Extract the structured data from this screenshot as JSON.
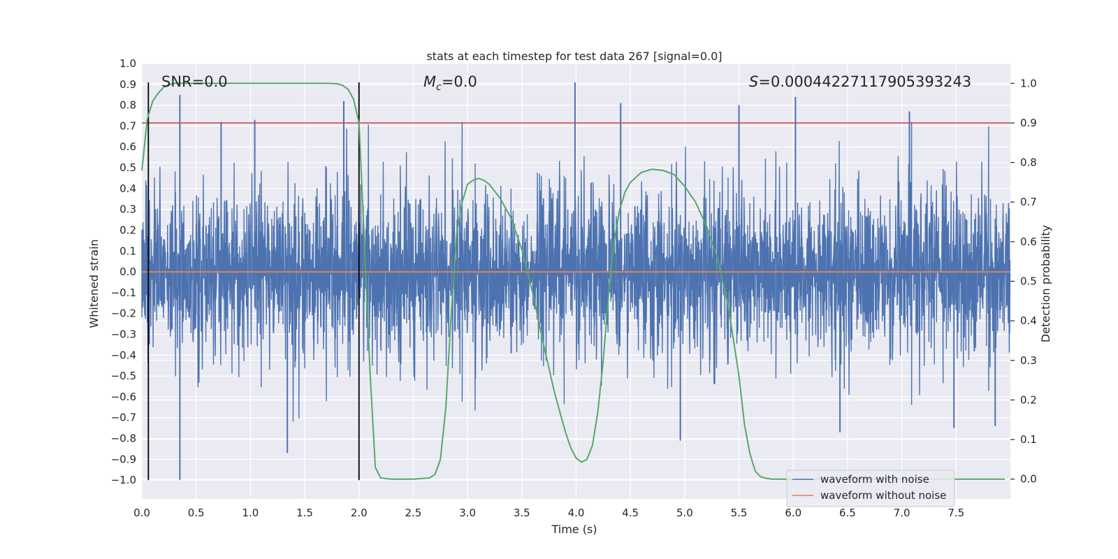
{
  "chart_data": {
    "type": "line",
    "title": "stats at each timestep for test data 267 [signal=0.0]",
    "xlabel": "Time (s)",
    "ylabel": "Whitened strain",
    "ylabel_right": "Detection probability",
    "xlim": [
      0.0,
      8.0
    ],
    "ylim": [
      -1.09,
      1.0
    ],
    "ylim_right": [
      -0.05,
      1.05
    ],
    "xticks": [
      0.0,
      0.5,
      1.0,
      1.5,
      2.0,
      2.5,
      3.0,
      3.5,
      4.0,
      4.5,
      5.0,
      5.5,
      6.0,
      6.5,
      7.0,
      7.5
    ],
    "xtick_labels": [
      "0.0",
      "0.5",
      "1.0",
      "1.5",
      "2.0",
      "2.5",
      "3.0",
      "3.5",
      "4.0",
      "4.5",
      "5.0",
      "5.5",
      "6.0",
      "6.5",
      "7.0",
      "7.5"
    ],
    "yticks": [
      1.0,
      0.9,
      0.8,
      0.7,
      0.6,
      0.5,
      0.4,
      0.3,
      0.2,
      0.1,
      0.0,
      -0.1,
      -0.2,
      -0.3,
      -0.4,
      -0.5,
      -0.6,
      -0.7,
      -0.8,
      -0.9,
      -1.0
    ],
    "ytick_labels": [
      "1.0",
      "0.9",
      "0.8",
      "0.7",
      "0.6",
      "0.5",
      "0.4",
      "0.3",
      "0.2",
      "0.1",
      "0.0",
      "−0.1",
      "−0.2",
      "−0.3",
      "−0.4",
      "−0.5",
      "−0.6",
      "−0.7",
      "−0.8",
      "−0.9",
      "−1.0"
    ],
    "yticks_right": [
      1.0,
      0.9,
      0.8,
      0.7,
      0.6,
      0.5,
      0.4,
      0.3,
      0.2,
      0.1,
      0.0
    ],
    "ytick_labels_right": [
      "1.0",
      "0.9",
      "0.8",
      "0.7",
      "0.6",
      "0.5",
      "0.4",
      "0.3",
      "0.2",
      "0.1",
      "0.0"
    ],
    "annotations": {
      "snr_prefix": "SNR=0.0",
      "mc_symbol": "M",
      "mc_sub": "c",
      "mc_value": "=0.0",
      "s_symbol": "S",
      "s_value": "=0.00044227117905393243"
    },
    "vertical_lines_x": [
      0.06,
      2.0
    ],
    "threshold_right": 0.9,
    "colors": {
      "noise": "#4c72b0",
      "clean": "#dd8452",
      "prob": "#55a868",
      "threshold": "#c44e52",
      "vline": "#000000",
      "bg": "#eaeaf2",
      "grid": "#ffffff"
    },
    "series": [
      {
        "name": "waveform with noise",
        "type": "noise",
        "envelope": {
          "typical_abs_max": 0.55,
          "peak_max": 0.91,
          "peak_min": -1.0
        },
        "spikes": [
          {
            "x": 0.35,
            "y": 0.85
          },
          {
            "x": 0.35,
            "y": -1.0
          },
          {
            "x": 0.73,
            "y": 0.72
          },
          {
            "x": 1.04,
            "y": 0.73
          },
          {
            "x": 1.34,
            "y": -0.87
          },
          {
            "x": 1.86,
            "y": 0.82
          },
          {
            "x": 3.99,
            "y": 0.91
          },
          {
            "x": 4.41,
            "y": 0.81
          },
          {
            "x": 4.96,
            "y": -0.81
          },
          {
            "x": 5.5,
            "y": 0.8
          },
          {
            "x": 6.02,
            "y": 0.84
          },
          {
            "x": 6.43,
            "y": -0.77
          },
          {
            "x": 7.07,
            "y": 0.77
          },
          {
            "x": 7.86,
            "y": -0.74
          },
          {
            "x": 7.48,
            "y": -0.75
          }
        ]
      },
      {
        "name": "waveform without noise",
        "type": "clean",
        "x": [
          0.0,
          8.0
        ],
        "y": [
          0.0,
          0.0
        ]
      },
      {
        "name": "Detection probability",
        "type": "prob",
        "axis": "right",
        "x": [
          0.0,
          0.05,
          0.1,
          0.15,
          0.2,
          0.25,
          0.3,
          0.4,
          0.6,
          1.0,
          1.5,
          1.7,
          1.8,
          1.85,
          1.9,
          1.95,
          2.0,
          2.05,
          2.1,
          2.15,
          2.2,
          2.3,
          2.5,
          2.65,
          2.7,
          2.75,
          2.8,
          2.85,
          2.9,
          2.95,
          3.0,
          3.05,
          3.1,
          3.15,
          3.2,
          3.3,
          3.4,
          3.5,
          3.6,
          3.7,
          3.8,
          3.9,
          3.95,
          4.0,
          4.05,
          4.1,
          4.15,
          4.2,
          4.25,
          4.3,
          4.35,
          4.4,
          4.45,
          4.5,
          4.6,
          4.7,
          4.8,
          4.9,
          5.0,
          5.1,
          5.2,
          5.3,
          5.4,
          5.5,
          5.55,
          5.6,
          5.65,
          5.7,
          5.75,
          5.8,
          5.9,
          6.0,
          6.5,
          7.0,
          7.5,
          7.95
        ],
        "y": [
          0.78,
          0.91,
          0.955,
          0.975,
          0.99,
          0.997,
          1.0,
          1.0,
          1.0,
          1.0,
          1.0,
          1.0,
          0.999,
          0.995,
          0.985,
          0.96,
          0.9,
          0.6,
          0.28,
          0.03,
          0.003,
          0.0,
          0.0,
          0.003,
          0.012,
          0.05,
          0.18,
          0.42,
          0.62,
          0.7,
          0.745,
          0.755,
          0.76,
          0.755,
          0.745,
          0.71,
          0.66,
          0.58,
          0.47,
          0.34,
          0.22,
          0.12,
          0.08,
          0.053,
          0.043,
          0.05,
          0.085,
          0.17,
          0.3,
          0.47,
          0.6,
          0.68,
          0.725,
          0.75,
          0.775,
          0.783,
          0.78,
          0.77,
          0.74,
          0.7,
          0.64,
          0.56,
          0.44,
          0.26,
          0.14,
          0.065,
          0.02,
          0.006,
          0.002,
          0.0,
          0.0,
          0.0,
          0.0,
          0.0,
          0.0,
          0.0
        ]
      }
    ],
    "legend": {
      "location": "lower-right",
      "entries": [
        {
          "label": "waveform with noise",
          "color": "#4c72b0"
        },
        {
          "label": "waveform without noise",
          "color": "#dd8452"
        }
      ]
    }
  }
}
